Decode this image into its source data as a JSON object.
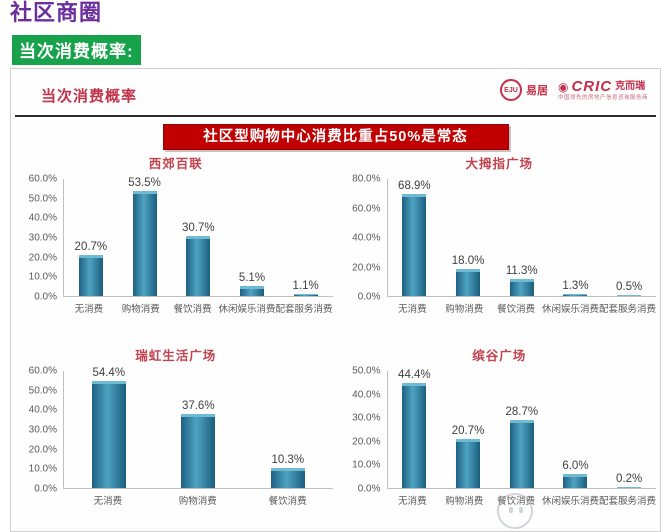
{
  "page": {
    "title": "社区商圈",
    "subtitle": "当次消费概率:"
  },
  "slide": {
    "header": "当次消费概率",
    "banner": "社区型购物中心消费比重占50%是常态",
    "logos": {
      "eju_circle": "EJU",
      "eju_name": "易居",
      "cric_eye": "◉",
      "cric_name": "CRIC",
      "cric_suffix": "克而瑞",
      "cric_tagline": "中国领先的房地产信息咨询服务商"
    }
  },
  "colors": {
    "title_purple": "#6B2E9E",
    "subtitle_green": "#18A24C",
    "banner_red": "#C00000",
    "heading_red": "#C23249",
    "bar_teal": "#2E7C9D",
    "axis_grey": "#BFBFBF",
    "label_grey": "#595959"
  },
  "chart_data": [
    {
      "type": "bar",
      "title": "西郊百联",
      "categories": [
        "无消费",
        "购物消费",
        "餐饮消费",
        "休闲娱乐消费",
        "配套服务消费"
      ],
      "values": [
        20.7,
        53.5,
        30.7,
        5.1,
        1.1
      ],
      "value_labels": [
        "20.7%",
        "53.5%",
        "30.7%",
        "5.1%",
        "1.1%"
      ],
      "yticks": [
        "60.0%",
        "50.0%",
        "40.0%",
        "30.0%",
        "20.0%",
        "10.0%",
        "0.0%"
      ],
      "ylim": [
        0,
        60
      ],
      "grid": false,
      "legend": "none"
    },
    {
      "type": "bar",
      "title": "大拇指广场",
      "categories": [
        "无消费",
        "购物消费",
        "餐饮消费",
        "休闲娱乐消费",
        "配套服务消费"
      ],
      "values": [
        68.9,
        18.0,
        11.3,
        1.3,
        0.5
      ],
      "value_labels": [
        "68.9%",
        "18.0%",
        "11.3%",
        "1.3%",
        "0.5%"
      ],
      "yticks": [
        "80.0%",
        "60.0%",
        "40.0%",
        "20.0%",
        "0.0%"
      ],
      "ylim": [
        0,
        80
      ],
      "grid": false,
      "legend": "none"
    },
    {
      "type": "bar",
      "title": "瑞虹生活广场",
      "categories": [
        "无消费",
        "购物消费",
        "餐饮消费"
      ],
      "values": [
        54.4,
        37.6,
        10.3
      ],
      "value_labels": [
        "54.4%",
        "37.6%",
        "10.3%"
      ],
      "yticks": [
        "60.0%",
        "50.0%",
        "40.0%",
        "30.0%",
        "20.0%",
        "10.0%",
        "0.0%"
      ],
      "ylim": [
        0,
        60
      ],
      "grid": false,
      "legend": "none"
    },
    {
      "type": "bar",
      "title": "缤谷广场",
      "categories": [
        "无消费",
        "购物消费",
        "餐饮消费",
        "休闲娱乐消费",
        "配套服务消费"
      ],
      "values": [
        44.4,
        20.7,
        28.7,
        6.0,
        0.2
      ],
      "value_labels": [
        "44.4%",
        "20.7%",
        "28.7%",
        "6.0%",
        "0.2%"
      ],
      "yticks": [
        "50.0%",
        "40.0%",
        "30.0%",
        "20.0%",
        "10.0%",
        "0.0%"
      ],
      "ylim": [
        0,
        50
      ],
      "grid": false,
      "legend": "none"
    }
  ]
}
